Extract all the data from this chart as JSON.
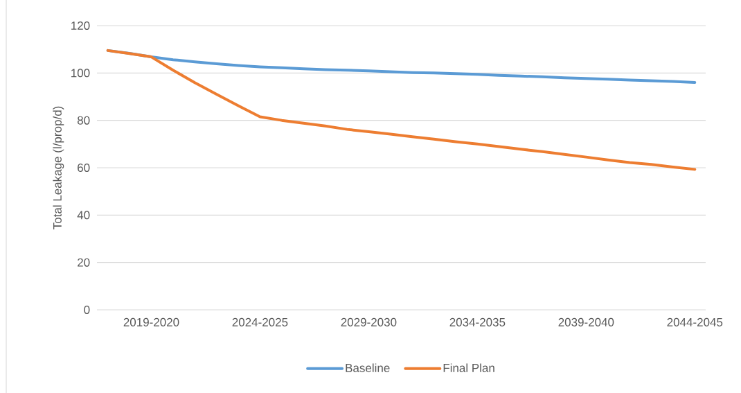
{
  "chart_data": {
    "type": "line",
    "ylabel": "Total Leakage (l/prop/d)",
    "categories": [
      null,
      null,
      "2019-2020",
      null,
      null,
      null,
      null,
      "2024-2025",
      null,
      null,
      null,
      null,
      "2029-2030",
      null,
      null,
      null,
      null,
      "2034-2035",
      null,
      null,
      null,
      null,
      "2039-2040",
      null,
      null,
      null,
      null,
      "2044-2045"
    ],
    "series": [
      {
        "name": "Baseline",
        "color": "#5b9bd5",
        "values": [
          109.5,
          108.3,
          106.8,
          105.6,
          104.7,
          103.9,
          103.2,
          102.6,
          102.2,
          101.8,
          101.4,
          101.2,
          100.9,
          100.5,
          100.2,
          100.0,
          99.7,
          99.4,
          99.0,
          98.7,
          98.4,
          98.0,
          97.7,
          97.4,
          97.0,
          96.7,
          96.4,
          96.0
        ]
      },
      {
        "name": "Final Plan",
        "color": "#ed7d31",
        "values": [
          109.5,
          108.2,
          106.8,
          101.2,
          95.9,
          91.0,
          86.2,
          81.5,
          80.0,
          78.8,
          77.6,
          76.2,
          75.2,
          74.2,
          73.1,
          72.1,
          71.0,
          70.0,
          68.9,
          67.8,
          66.8,
          65.6,
          64.5,
          63.3,
          62.2,
          61.4,
          60.3,
          59.3
        ]
      }
    ],
    "ylim": [
      0,
      120
    ],
    "yticks": [
      0,
      20,
      40,
      60,
      80,
      100,
      120
    ],
    "grid": "y",
    "legend": "bottom",
    "marker": "none",
    "line_style": "solid"
  }
}
